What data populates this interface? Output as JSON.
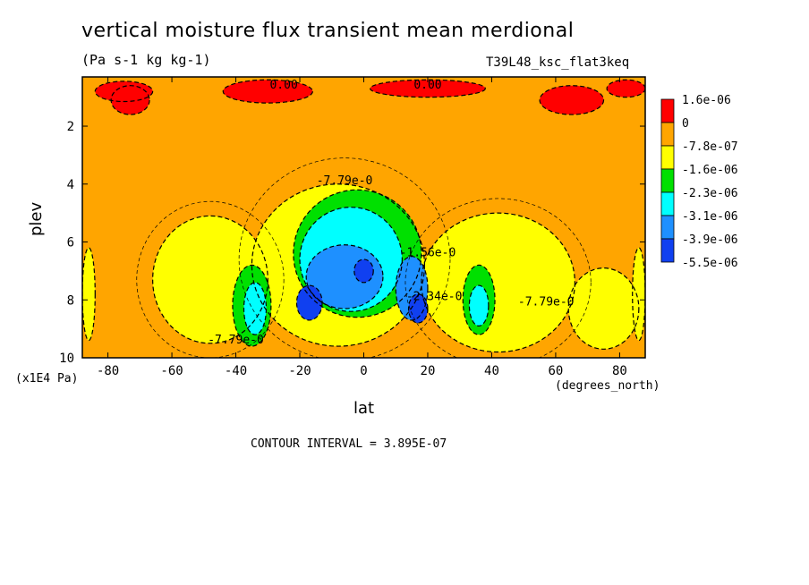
{
  "title": "vertical moisture flux transient mean merdional",
  "units": "(Pa s-1 kg kg-1)",
  "run_label": "T39L48_ksc_flat3keq",
  "x_unit_label": "(degrees_north)",
  "y_unit_label": "(x1E4 Pa)",
  "contour_interval_text": "CONTOUR INTERVAL = 3.895E-07",
  "chart_data": {
    "type": "heatmap",
    "subtype": "filled contour",
    "xlabel": "lat",
    "ylabel": "plev",
    "xlim": [
      -88,
      88
    ],
    "ylim": [
      10,
      0.3
    ],
    "x_ticks": [
      -80,
      -60,
      -40,
      -20,
      0,
      20,
      40,
      60,
      80
    ],
    "y_ticks": [
      2,
      4,
      6,
      8,
      10
    ],
    "legend_position": "right",
    "legend": [
      {
        "label": "1.6e-06",
        "color": "#ff0000"
      },
      {
        "label": "0",
        "color": "#ffa500"
      },
      {
        "label": "-7.8e-07",
        "color": "#ffff00"
      },
      {
        "label": "-1.6e-06",
        "color": "#00e000"
      },
      {
        "label": "-2.3e-06",
        "color": "#00ffff"
      },
      {
        "label": "-3.1e-06",
        "color": "#1e90ff"
      },
      {
        "label": "-3.9e-06",
        "color": "#0000ff"
      },
      {
        "label": "-5.5e-06",
        "color": ""
      }
    ],
    "contour_labels": [
      {
        "text": "0.00",
        "lat": -25,
        "plev": 0.7
      },
      {
        "text": "0.00",
        "lat": 20,
        "plev": 0.7
      },
      {
        "text": "-7.79e-0",
        "lat": -6,
        "plev": 4.0
      },
      {
        "text": "-1.56e-0",
        "lat": 20,
        "plev": 6.5
      },
      {
        "text": "-2.34e-0",
        "lat": 22,
        "plev": 8.0
      },
      {
        "text": "-7.79e-0",
        "lat": 57,
        "plev": 8.2
      },
      {
        "text": "-7.79e-0",
        "lat": -40,
        "plev": 9.5
      }
    ],
    "fields": [
      {
        "level": "-7.8e-07",
        "features": [
          {
            "lat": -48,
            "plev": 7.3,
            "dlat": 18,
            "dplev": 2.2
          },
          {
            "lat": -8,
            "plev": 6.8,
            "dlat": 27,
            "dplev": 2.8
          },
          {
            "lat": 42,
            "plev": 7.4,
            "dlat": 24,
            "dplev": 2.4
          },
          {
            "lat": 75,
            "plev": 8.3,
            "dlat": 11,
            "dplev": 1.4
          },
          {
            "lat": -86,
            "plev": 7.8,
            "dlat": 2,
            "dplev": 1.6
          },
          {
            "lat": 86,
            "plev": 7.8,
            "dlat": 2,
            "dplev": 1.6
          }
        ]
      },
      {
        "level": "-1.6e-06",
        "features": [
          {
            "lat": -2,
            "plev": 6.4,
            "dlat": 20,
            "dplev": 2.2
          },
          {
            "lat": -35,
            "plev": 8.2,
            "dlat": 6,
            "dplev": 1.4
          },
          {
            "lat": 36,
            "plev": 8.0,
            "dlat": 5,
            "dplev": 1.2
          }
        ]
      },
      {
        "level": "-2.3e-06",
        "features": [
          {
            "lat": -4,
            "plev": 6.6,
            "dlat": 16,
            "dplev": 1.8
          },
          {
            "lat": -34,
            "plev": 8.3,
            "dlat": 3.5,
            "dplev": 0.9
          },
          {
            "lat": 36,
            "plev": 8.2,
            "dlat": 3,
            "dplev": 0.7
          }
        ]
      },
      {
        "level": "-3.1e-06",
        "features": [
          {
            "lat": -6,
            "plev": 7.2,
            "dlat": 12,
            "dplev": 1.1
          },
          {
            "lat": 15,
            "plev": 7.6,
            "dlat": 5,
            "dplev": 1.1
          }
        ]
      },
      {
        "level": "-3.9e-06",
        "features": [
          {
            "lat": -17,
            "plev": 8.1,
            "dlat": 4,
            "dplev": 0.6
          },
          {
            "lat": 17,
            "plev": 8.3,
            "dlat": 3,
            "dplev": 0.5
          },
          {
            "lat": 0,
            "plev": 7.0,
            "dlat": 3,
            "dplev": 0.4
          }
        ]
      },
      {
        "level": "1.6e-06",
        "features": [
          {
            "lat": -75,
            "plev": 0.8,
            "dlat": 9,
            "dplev": 0.35
          },
          {
            "lat": -73,
            "plev": 1.1,
            "dlat": 6,
            "dplev": 0.5
          },
          {
            "lat": -30,
            "plev": 0.8,
            "dlat": 14,
            "dplev": 0.4
          },
          {
            "lat": 20,
            "plev": 0.7,
            "dlat": 18,
            "dplev": 0.3
          },
          {
            "lat": 65,
            "plev": 1.1,
            "dlat": 10,
            "dplev": 0.5
          },
          {
            "lat": 82,
            "plev": 0.7,
            "dlat": 6,
            "dplev": 0.3
          }
        ]
      }
    ]
  }
}
